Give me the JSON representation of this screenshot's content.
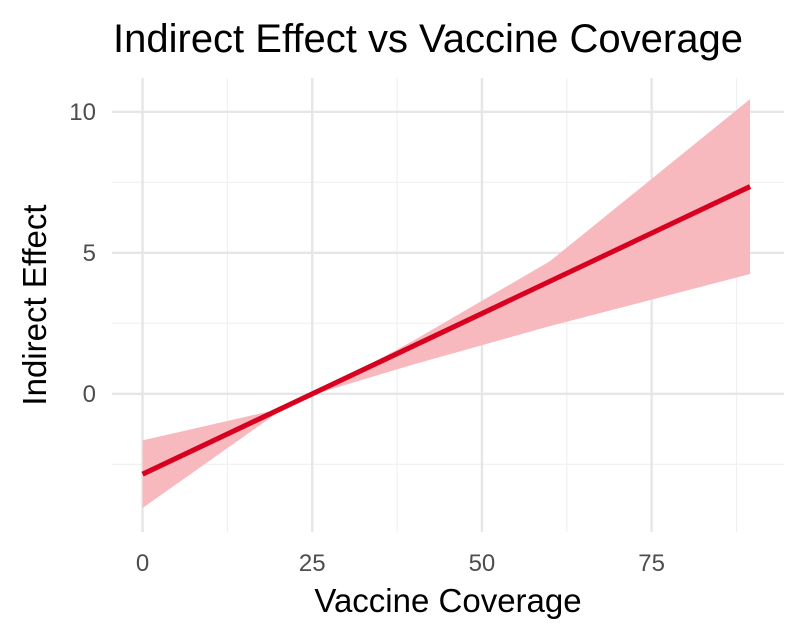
{
  "chart_data": {
    "type": "line",
    "title": "Indirect Effect vs Vaccine Coverage",
    "xlabel": "Vaccine Coverage",
    "ylabel": "Indirect Effect",
    "xlim": [
      -4.5,
      94.5
    ],
    "ylim": [
      -4.9,
      11.2
    ],
    "x_ticks": [
      0,
      25,
      50,
      75
    ],
    "x_tick_labels": [
      "0",
      "25",
      "50",
      "75"
    ],
    "x_minor_ticks": [
      12.5,
      37.5,
      62.5,
      87.5
    ],
    "y_ticks": [
      0,
      5,
      10
    ],
    "y_tick_labels": [
      "0",
      "5",
      "10"
    ],
    "y_minor_ticks": [
      -2.5,
      2.5,
      7.5
    ],
    "grid": true,
    "legend": "none",
    "series": [
      {
        "x": [
          0,
          89.5
        ],
        "y": [
          -2.85,
          7.35
        ],
        "color": "#d7001f",
        "band": {
          "x": [
            0,
            10,
            20,
            25.5,
            40,
            60,
            89.5
          ],
          "lower": [
            -4.05,
            -2.35,
            -0.65,
            0.0,
            1.05,
            2.4,
            4.25
          ],
          "upper": [
            -1.65,
            -1.1,
            -0.55,
            0.0,
            1.9,
            4.7,
            10.45
          ],
          "color": "#f8b9be"
        }
      }
    ]
  }
}
